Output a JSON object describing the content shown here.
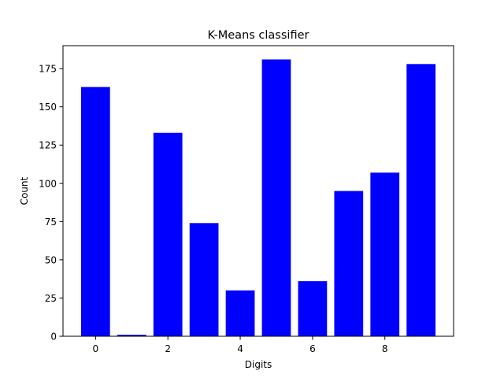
{
  "chart_data": {
    "type": "bar",
    "title": "K-Means classifier",
    "xlabel": "Digits",
    "ylabel": "Count",
    "categories": [
      0,
      1,
      2,
      3,
      4,
      5,
      6,
      7,
      8,
      9
    ],
    "values": [
      163,
      1,
      133,
      74,
      30,
      181,
      36,
      95,
      107,
      178
    ],
    "bar_color": "#0000ff",
    "xlim": [
      -0.9,
      9.9
    ],
    "ylim": [
      0,
      190
    ],
    "x_ticks": [
      0,
      2,
      4,
      6,
      8
    ],
    "y_ticks": [
      0,
      25,
      50,
      75,
      100,
      125,
      150,
      175
    ],
    "grid": false,
    "legend": "none"
  }
}
